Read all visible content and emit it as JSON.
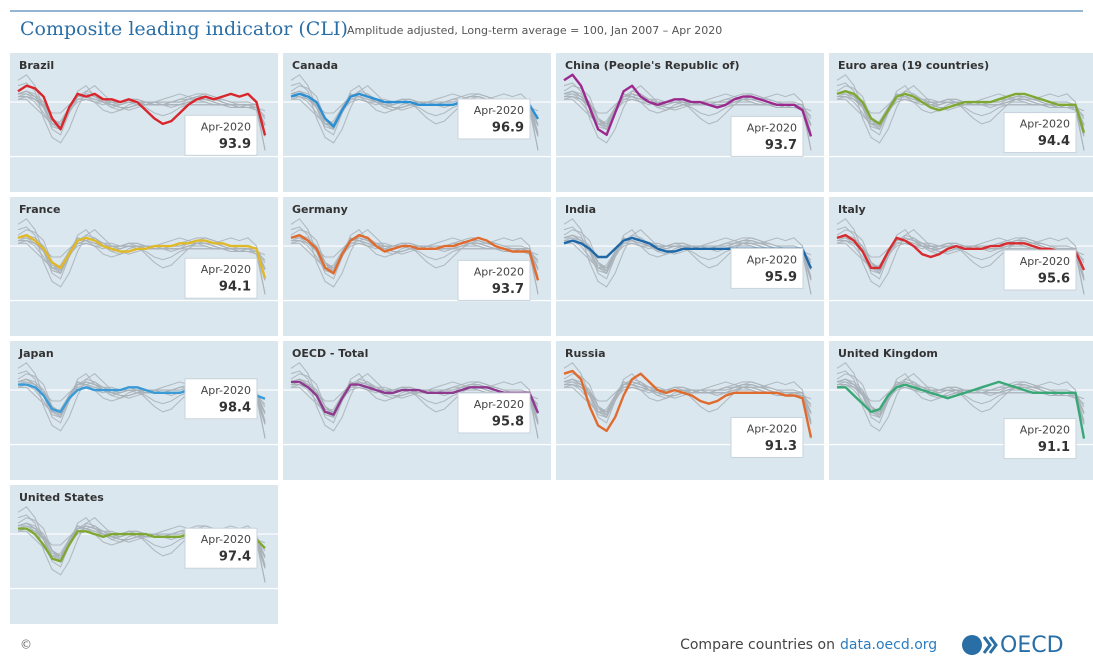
{
  "title": "Composite leading indicator (CLI)",
  "subtitle": "Amplitude adjusted, Long-term average = 100, Jan 2007 – Apr 2020",
  "footer": {
    "copyright": "©",
    "text": "Compare countries on",
    "link": "data.oecd.org",
    "logo": "OECD"
  },
  "chart_data": [
    {
      "type": "line",
      "title": "Brazil",
      "color": "#d9262c",
      "annotation": "Apr-2020",
      "ylim": [
        83.5,
        109
      ],
      "yticks": [
        90,
        100
      ],
      "grid": true,
      "categories": [
        null,
        null,
        null,
        null,
        null,
        null,
        null,
        null,
        null,
        null,
        null,
        null,
        null,
        null,
        null,
        null,
        null,
        null,
        null,
        null,
        null,
        null,
        null,
        null,
        null,
        null,
        null,
        null,
        null,
        null
      ],
      "values": [
        102,
        103,
        102.5,
        101,
        97,
        95,
        99,
        101.5,
        101,
        101.5,
        100.5,
        100.5,
        100,
        100.5,
        100,
        98.5,
        97,
        96,
        96.5,
        98,
        99.5,
        100.5,
        101,
        100.5,
        101,
        101.5,
        101,
        101.5,
        100,
        93.9
      ]
    },
    {
      "type": "line",
      "title": "Canada",
      "color": "#2b8fd3",
      "annotation": "Apr-2020",
      "ylim": [
        83.5,
        109
      ],
      "yticks": [
        90,
        100
      ],
      "grid": true,
      "categories": [
        null,
        null,
        null,
        null,
        null,
        null,
        null,
        null,
        null,
        null,
        null,
        null,
        null,
        null,
        null,
        null,
        null,
        null,
        null,
        null,
        null,
        null,
        null,
        null,
        null,
        null,
        null,
        null,
        null,
        null
      ],
      "values": [
        101,
        101.5,
        101,
        100,
        97,
        95.5,
        98.5,
        101,
        101.5,
        101,
        100.5,
        100,
        100,
        100,
        100,
        99.5,
        99.5,
        99.5,
        99.5,
        99.5,
        100,
        100,
        100,
        99.5,
        99.5,
        99.5,
        99,
        99.5,
        99.5,
        96.9
      ]
    },
    {
      "type": "line",
      "title": "China (People's Republic of)",
      "color": "#9b2a8f",
      "annotation": "Apr-2020",
      "ylim": [
        83.5,
        109
      ],
      "yticks": [
        90,
        100
      ],
      "grid": true,
      "categories": [
        null,
        null,
        null,
        null,
        null,
        null,
        null,
        null,
        null,
        null,
        null,
        null,
        null,
        null,
        null,
        null,
        null,
        null,
        null,
        null,
        null,
        null,
        null,
        null,
        null,
        null,
        null,
        null,
        null,
        null
      ],
      "values": [
        104,
        105,
        103,
        99,
        95,
        94,
        98,
        102,
        103,
        101,
        100,
        99.5,
        100,
        100.5,
        100.5,
        100,
        100,
        99.5,
        99,
        99.5,
        100.5,
        101,
        101,
        100.5,
        100,
        99.5,
        99.5,
        99.5,
        98.5,
        93.7
      ]
    },
    {
      "type": "line",
      "title": "Euro area (19 countries)",
      "color": "#7fa832",
      "annotation": "Apr-2020",
      "ylim": [
        83.5,
        109
      ],
      "yticks": [
        90,
        100
      ],
      "grid": true,
      "categories": [
        null,
        null,
        null,
        null,
        null,
        null,
        null,
        null,
        null,
        null,
        null,
        null,
        null,
        null,
        null,
        null,
        null,
        null,
        null,
        null,
        null,
        null,
        null,
        null,
        null,
        null,
        null,
        null,
        null,
        null
      ],
      "values": [
        101.5,
        102,
        101.5,
        100,
        97,
        96,
        98.5,
        101,
        101.5,
        101,
        100,
        99,
        98.5,
        99,
        99.5,
        100,
        100,
        100,
        100,
        100.5,
        101,
        101.5,
        101.5,
        101,
        100.5,
        100,
        99.5,
        99.5,
        99.5,
        94.4
      ]
    },
    {
      "type": "line",
      "title": "France",
      "color": "#e0b928",
      "annotation": "Apr-2020",
      "ylim": [
        83.5,
        109
      ],
      "yticks": [
        90,
        100
      ],
      "grid": true,
      "categories": [
        null,
        null,
        null,
        null,
        null,
        null,
        null,
        null,
        null,
        null,
        null,
        null,
        null,
        null,
        null,
        null,
        null,
        null,
        null,
        null,
        null,
        null,
        null,
        null,
        null,
        null,
        null,
        null,
        null,
        null
      ],
      "values": [
        101.5,
        102,
        101,
        99.5,
        97,
        96,
        98.5,
        101,
        101.5,
        101,
        100,
        99.5,
        99,
        99,
        99.5,
        99.5,
        100,
        100,
        100,
        100.5,
        100.5,
        101,
        101,
        100.5,
        100.5,
        100,
        100,
        100,
        99.5,
        94.1
      ]
    },
    {
      "type": "line",
      "title": "Germany",
      "color": "#e06b2e",
      "annotation": "Apr-2020",
      "ylim": [
        83.5,
        109
      ],
      "yticks": [
        90,
        100
      ],
      "grid": true,
      "categories": [
        null,
        null,
        null,
        null,
        null,
        null,
        null,
        null,
        null,
        null,
        null,
        null,
        null,
        null,
        null,
        null,
        null,
        null,
        null,
        null,
        null,
        null,
        null,
        null,
        null,
        null,
        null,
        null,
        null,
        null
      ],
      "values": [
        101.5,
        102,
        101,
        99.5,
        96,
        95,
        98.5,
        101,
        102,
        101.5,
        100,
        99,
        99.5,
        100,
        100,
        99.5,
        99.5,
        99.5,
        100,
        100,
        100.5,
        101,
        101.5,
        101,
        100,
        99.5,
        99,
        99,
        99,
        93.7
      ]
    },
    {
      "type": "line",
      "title": "India",
      "color": "#1f68a8",
      "annotation": "Apr-2020",
      "ylim": [
        83.5,
        109
      ],
      "yticks": [
        90,
        100
      ],
      "grid": true,
      "categories": [
        null,
        null,
        null,
        null,
        null,
        null,
        null,
        null,
        null,
        null,
        null,
        null,
        null,
        null,
        null,
        null,
        null,
        null,
        null,
        null,
        null,
        null,
        null,
        null,
        null,
        null,
        null,
        null,
        null,
        null
      ],
      "values": [
        100.5,
        101,
        100.5,
        99.5,
        98,
        98,
        99.5,
        101,
        101.5,
        101,
        100.5,
        99.5,
        99,
        99,
        99.5,
        99.5,
        99.5,
        99.5,
        99.5,
        99.5,
        99.5,
        99.5,
        99.5,
        99.5,
        99.5,
        99.5,
        99.5,
        99.5,
        99.5,
        95.9
      ]
    },
    {
      "type": "line",
      "title": "Italy",
      "color": "#d72b2f",
      "annotation": "Apr-2020",
      "ylim": [
        83.5,
        109
      ],
      "yticks": [
        90,
        100
      ],
      "grid": true,
      "categories": [
        null,
        null,
        null,
        null,
        null,
        null,
        null,
        null,
        null,
        null,
        null,
        null,
        null,
        null,
        null,
        null,
        null,
        null,
        null,
        null,
        null,
        null,
        null,
        null,
        null,
        null,
        null,
        null,
        null,
        null
      ],
      "values": [
        101.5,
        102,
        101,
        99,
        96,
        96,
        99,
        101.5,
        101,
        100,
        98.5,
        98,
        98.5,
        99.5,
        100,
        99.5,
        99.5,
        99.5,
        100,
        100,
        100.5,
        100.5,
        100.5,
        100,
        99.5,
        99.5,
        99,
        99,
        99,
        95.6
      ]
    },
    {
      "type": "line",
      "title": "Japan",
      "color": "#3a9bd6",
      "annotation": "Apr-2020",
      "ylim": [
        83.5,
        109
      ],
      "yticks": [
        90,
        100
      ],
      "grid": true,
      "categories": [
        null,
        null,
        null,
        null,
        null,
        null,
        null,
        null,
        null,
        null,
        null,
        null,
        null,
        null,
        null,
        null,
        null,
        null,
        null,
        null,
        null,
        null,
        null,
        null,
        null,
        null,
        null,
        null,
        null,
        null
      ],
      "values": [
        101,
        101,
        100.5,
        99,
        96.5,
        96,
        98.5,
        100,
        100.5,
        100,
        100,
        100,
        100,
        100.5,
        100.5,
        100,
        99.5,
        99.5,
        99.5,
        99.5,
        100,
        100.5,
        100.5,
        100,
        99.5,
        99,
        99,
        99,
        99,
        98.4
      ]
    },
    {
      "type": "line",
      "title": "OECD - Total",
      "color": "#8e3a8e",
      "annotation": "Apr-2020",
      "ylim": [
        83.5,
        109
      ],
      "yticks": [
        90,
        100
      ],
      "grid": true,
      "categories": [
        null,
        null,
        null,
        null,
        null,
        null,
        null,
        null,
        null,
        null,
        null,
        null,
        null,
        null,
        null,
        null,
        null,
        null,
        null,
        null,
        null,
        null,
        null,
        null,
        null,
        null,
        null,
        null,
        null,
        null
      ],
      "values": [
        101.5,
        101.5,
        100.5,
        99,
        96,
        95.5,
        98.5,
        101,
        101,
        100.5,
        100,
        99.5,
        99.5,
        100,
        100,
        100,
        99.5,
        99.5,
        99.5,
        99.5,
        100,
        100.5,
        100.5,
        100.5,
        100,
        99.5,
        99.5,
        99.5,
        99.5,
        95.8
      ]
    },
    {
      "type": "line",
      "title": "Russia",
      "color": "#e06b2e",
      "annotation": "Apr-2020",
      "ylim": [
        83.5,
        109
      ],
      "yticks": [
        90,
        100
      ],
      "grid": true,
      "categories": [
        null,
        null,
        null,
        null,
        null,
        null,
        null,
        null,
        null,
        null,
        null,
        null,
        null,
        null,
        null,
        null,
        null,
        null,
        null,
        null,
        null,
        null,
        null,
        null,
        null,
        null,
        null,
        null,
        null,
        null
      ],
      "values": [
        103,
        103.5,
        102,
        97,
        93.5,
        92.5,
        95,
        99,
        102,
        103,
        101.5,
        100,
        99.5,
        100,
        99.5,
        99,
        98,
        97.5,
        98,
        99,
        99.5,
        99.5,
        99.5,
        99.5,
        99.5,
        99.5,
        99,
        99,
        98.5,
        91.3
      ]
    },
    {
      "type": "line",
      "title": "United Kingdom",
      "color": "#3aa876",
      "annotation": "Apr-2020",
      "ylim": [
        83.5,
        109
      ],
      "yticks": [
        90,
        100
      ],
      "grid": true,
      "categories": [
        null,
        null,
        null,
        null,
        null,
        null,
        null,
        null,
        null,
        null,
        null,
        null,
        null,
        null,
        null,
        null,
        null,
        null,
        null,
        null,
        null,
        null,
        null,
        null,
        null,
        null,
        null,
        null,
        null,
        null
      ],
      "values": [
        100.5,
        100.5,
        99,
        97.5,
        96,
        96.5,
        99,
        100.5,
        101,
        100.5,
        100,
        99.5,
        99,
        98.5,
        99,
        99.5,
        100,
        100.5,
        101,
        101.5,
        101,
        100.5,
        100,
        99.5,
        99.5,
        99.5,
        99.5,
        99.5,
        99.5,
        91.1
      ]
    },
    {
      "type": "line",
      "title": "United States",
      "color": "#7fa832",
      "annotation": "Apr-2020",
      "ylim": [
        83.5,
        109
      ],
      "yticks": [
        90,
        100
      ],
      "grid": true,
      "categories": [
        null,
        null,
        null,
        null,
        null,
        null,
        null,
        null,
        null,
        null,
        null,
        null,
        null,
        null,
        null,
        null,
        null,
        null,
        null,
        null,
        null,
        null,
        null,
        null,
        null,
        null,
        null,
        null,
        null,
        null
      ],
      "values": [
        101,
        101,
        100,
        98,
        95.5,
        95,
        98,
        100.5,
        100.5,
        100,
        99.5,
        100,
        100,
        100,
        100,
        100,
        99.5,
        99.5,
        99.5,
        99.5,
        100,
        100.5,
        100.5,
        100,
        99.5,
        99,
        99,
        99.5,
        99,
        97.4
      ]
    }
  ]
}
